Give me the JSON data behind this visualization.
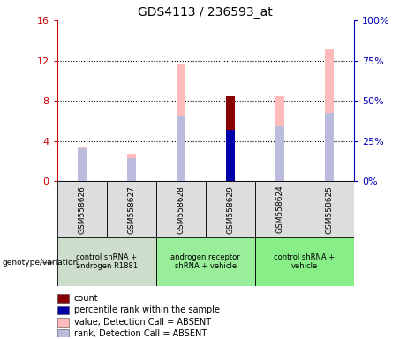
{
  "title": "GDS4113 / 236593_at",
  "samples": [
    "GSM558626",
    "GSM558627",
    "GSM558628",
    "GSM558629",
    "GSM558624",
    "GSM558625"
  ],
  "pink_bars": [
    3.5,
    2.7,
    11.6,
    8.5,
    8.5,
    13.2
  ],
  "lavender_bars": [
    3.3,
    2.3,
    6.5,
    5.1,
    5.5,
    6.8
  ],
  "red_bars": [
    0.0,
    0.0,
    0.0,
    8.5,
    0.0,
    0.0
  ],
  "blue_bars": [
    0.0,
    0.0,
    0.0,
    5.1,
    0.0,
    0.0
  ],
  "left_ylim": [
    0,
    16
  ],
  "right_ylim": [
    0,
    100
  ],
  "left_yticks": [
    0,
    4,
    8,
    12,
    16
  ],
  "right_yticks": [
    0,
    25,
    50,
    75,
    100
  ],
  "left_ycolor": "#cc0000",
  "right_ycolor": "#0000bb",
  "bar_width": 0.18,
  "pink_color": "#ffbbbb",
  "lavender_color": "#bbbbdd",
  "red_color": "#880000",
  "blue_color": "#0000aa",
  "group_info": [
    {
      "indices": [
        0,
        1
      ],
      "color": "#ccddcc",
      "text": "control shRNA +\nandrogen R1881"
    },
    {
      "indices": [
        2,
        3
      ],
      "color": "#99ee99",
      "text": "androgen receptor\nshRNA + vehicle"
    },
    {
      "indices": [
        4,
        5
      ],
      "color": "#88ee88",
      "text": "control shRNA +\nvehicle"
    }
  ],
  "legend_colors": [
    "#880000",
    "#0000aa",
    "#ffbbbb",
    "#bbbbdd"
  ],
  "legend_labels": [
    "count",
    "percentile rank within the sample",
    "value, Detection Call = ABSENT",
    "rank, Detection Call = ABSENT"
  ],
  "genotype_label": "genotype/variation"
}
